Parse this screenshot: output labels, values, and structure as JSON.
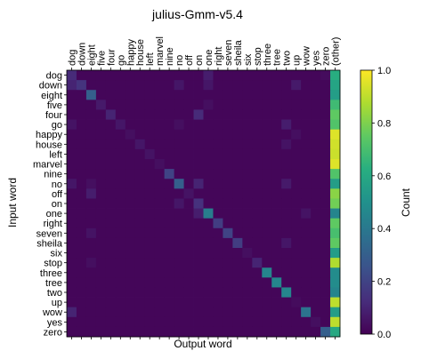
{
  "chart_data": {
    "type": "heatmap",
    "title": "julius-Gmm-v5.4",
    "xlabel": "Output word",
    "ylabel": "Input word",
    "row_labels": [
      "dog",
      "down",
      "eight",
      "five",
      "four",
      "go",
      "happy",
      "house",
      "left",
      "marvel",
      "nine",
      "no",
      "off",
      "on",
      "one",
      "right",
      "seven",
      "sheila",
      "six",
      "stop",
      "three",
      "tree",
      "two",
      "up",
      "wow",
      "yes",
      "zero"
    ],
    "column_labels": [
      "dog",
      "down",
      "eight",
      "five",
      "four",
      "go",
      "happy",
      "house",
      "left",
      "marvel",
      "nine",
      "no",
      "off",
      "on",
      "one",
      "right",
      "seven",
      "sheila",
      "six",
      "stop",
      "three",
      "tree",
      "two",
      "up",
      "wow",
      "yes",
      "zero",
      "(other)"
    ],
    "colorbar": {
      "label": "Count",
      "range": [
        0.0,
        1.0
      ],
      "ticks": [
        0.0,
        0.2,
        0.4,
        0.6,
        0.8,
        1.0
      ],
      "tick_labels": [
        "0.0",
        "0.2",
        "0.4",
        "0.6",
        "0.8",
        "1.0"
      ],
      "colormap": "viridis"
    },
    "diagonal": [
      0.12,
      0.15,
      0.3,
      0.07,
      0.1,
      0.06,
      0.04,
      0.06,
      0.05,
      0.04,
      0.2,
      0.3,
      0.05,
      0.14,
      0.42,
      0.18,
      0.2,
      0.18,
      0.04,
      0.1,
      0.45,
      0.45,
      0.45,
      0.03,
      0.38,
      0.04,
      0.3
    ],
    "other_column": [
      0.62,
      0.58,
      0.55,
      0.68,
      0.75,
      0.72,
      0.95,
      0.93,
      0.92,
      0.95,
      0.72,
      0.55,
      0.82,
      0.78,
      0.45,
      0.75,
      0.7,
      0.75,
      0.55,
      0.88,
      0.48,
      0.48,
      0.45,
      0.9,
      0.55,
      0.9,
      0.6
    ],
    "off_diagonal": [
      {
        "row": "dog",
        "col": "one",
        "value": 0.08
      },
      {
        "row": "dog",
        "col": "zero",
        "value": 0.03
      },
      {
        "row": "down",
        "col": "dog",
        "value": 0.1
      },
      {
        "row": "down",
        "col": "no",
        "value": 0.06
      },
      {
        "row": "down",
        "col": "one",
        "value": 0.06
      },
      {
        "row": "down",
        "col": "up",
        "value": 0.07
      },
      {
        "row": "five",
        "col": "one",
        "value": 0.04
      },
      {
        "row": "four",
        "col": "on",
        "value": 0.12
      },
      {
        "row": "go",
        "col": "dog",
        "value": 0.05
      },
      {
        "row": "go",
        "col": "no",
        "value": 0.04
      },
      {
        "row": "go",
        "col": "two",
        "value": 0.08
      },
      {
        "row": "happy",
        "col": "up",
        "value": 0.04
      },
      {
        "row": "house",
        "col": "two",
        "value": 0.05
      },
      {
        "row": "no",
        "col": "dog",
        "value": 0.06
      },
      {
        "row": "no",
        "col": "eight",
        "value": 0.04
      },
      {
        "row": "no",
        "col": "on",
        "value": 0.1
      },
      {
        "row": "no",
        "col": "two",
        "value": 0.07
      },
      {
        "row": "off",
        "col": "eight",
        "value": 0.08
      },
      {
        "row": "on",
        "col": "no",
        "value": 0.06
      },
      {
        "row": "one",
        "col": "on",
        "value": 0.08
      },
      {
        "row": "one",
        "col": "wow",
        "value": 0.05
      },
      {
        "row": "seven",
        "col": "eight",
        "value": 0.05
      },
      {
        "row": "sheila",
        "col": "two",
        "value": 0.06
      },
      {
        "row": "stop",
        "col": "eight",
        "value": 0.04
      },
      {
        "row": "wow",
        "col": "dog",
        "value": 0.1
      },
      {
        "row": "zero",
        "col": "zero",
        "value": 0.3
      }
    ]
  }
}
